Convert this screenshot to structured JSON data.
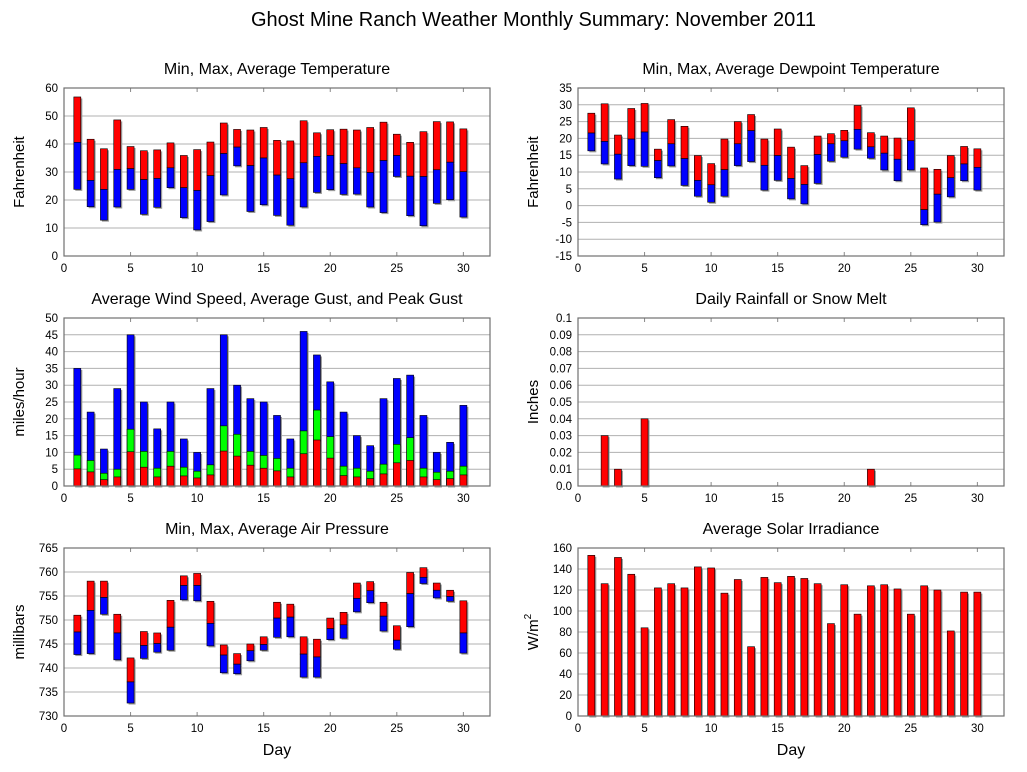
{
  "page": {
    "title": "Ghost Mine Ranch Weather Monthly Summary: November 2011"
  },
  "colors": {
    "red": "#ff0000",
    "blue": "#0000ff",
    "green": "#00ff00",
    "grid": "#b0b0b0",
    "frame": "#707070"
  },
  "chart_data": [
    {
      "id": "temperature",
      "type": "bar",
      "subtype": "floating-range",
      "title": "Min, Max, Average Temperature",
      "xlabel": "",
      "ylabel": "Fahrenheit",
      "xlim": [
        0,
        32
      ],
      "xticks": [
        0,
        5,
        10,
        15,
        20,
        25,
        30
      ],
      "ylim": [
        0,
        60
      ],
      "yticks": [
        0,
        10,
        20,
        30,
        40,
        50,
        60
      ],
      "grid": true,
      "x": [
        1,
        2,
        3,
        4,
        5,
        6,
        7,
        8,
        9,
        10,
        11,
        12,
        13,
        14,
        15,
        16,
        17,
        18,
        19,
        20,
        21,
        22,
        23,
        24,
        25,
        26,
        27,
        28,
        29,
        30
      ],
      "series": [
        {
          "name": "Max",
          "color": "red",
          "values": [
            56.8,
            41.7,
            38.3,
            48.6,
            39.1,
            37.6,
            37.9,
            40.4,
            35.9,
            38.0,
            40.7,
            47.5,
            45.2,
            45.0,
            45.9,
            41.3,
            41.1,
            48.3,
            44.0,
            45.1,
            45.3,
            45.0,
            45.9,
            47.8,
            43.5,
            40.6,
            44.4,
            48.0,
            47.9,
            45.4
          ]
        },
        {
          "name": "Average",
          "color": "split",
          "values": [
            40.6,
            27.0,
            23.8,
            30.9,
            31.2,
            27.3,
            27.7,
            31.5,
            24.4,
            23.4,
            28.7,
            36.6,
            38.9,
            32.3,
            35.0,
            28.9,
            27.6,
            33.3,
            35.6,
            35.9,
            33.0,
            31.5,
            29.8,
            34.1,
            35.9,
            28.5,
            28.4,
            30.8,
            33.5,
            30.1
          ]
        },
        {
          "name": "Min",
          "color": "blue",
          "values": [
            23.8,
            17.6,
            12.8,
            17.5,
            23.8,
            14.9,
            17.4,
            24.4,
            13.7,
            9.3,
            12.3,
            21.8,
            32.2,
            15.9,
            18.3,
            14.5,
            11.0,
            17.5,
            22.7,
            23.7,
            22.0,
            22.1,
            17.5,
            15.5,
            28.4,
            14.4,
            10.8,
            18.8,
            20.1,
            13.9
          ]
        }
      ]
    },
    {
      "id": "dewpoint",
      "type": "bar",
      "subtype": "floating-range",
      "title": "Min, Max, Average Dewpoint Temperature",
      "xlabel": "",
      "ylabel": "Fahrenheit",
      "xlim": [
        0,
        32
      ],
      "xticks": [
        0,
        5,
        10,
        15,
        20,
        25,
        30
      ],
      "ylim": [
        -15,
        35
      ],
      "yticks": [
        -15,
        -10,
        -5,
        0,
        5,
        10,
        15,
        20,
        25,
        30,
        35
      ],
      "grid": true,
      "x": [
        1,
        2,
        3,
        4,
        5,
        6,
        7,
        8,
        9,
        10,
        11,
        12,
        13,
        14,
        15,
        16,
        17,
        18,
        19,
        20,
        21,
        22,
        23,
        24,
        25,
        26,
        27,
        28,
        29,
        30
      ],
      "series": [
        {
          "name": "Max",
          "color": "red",
          "values": [
            27.5,
            30.3,
            21.0,
            28.9,
            30.4,
            16.8,
            25.6,
            23.6,
            14.9,
            12.5,
            19.8,
            25.0,
            27.1,
            19.8,
            22.8,
            17.4,
            11.9,
            20.7,
            21.4,
            22.4,
            29.8,
            21.7,
            20.7,
            20.1,
            29.1,
            11.2,
            10.8,
            14.9,
            17.6,
            16.9
          ]
        },
        {
          "name": "Average",
          "color": "split",
          "values": [
            21.6,
            19.1,
            15.3,
            19.8,
            21.9,
            13.4,
            18.4,
            14.0,
            7.5,
            6.2,
            10.7,
            18.4,
            22.3,
            12.0,
            14.9,
            8.1,
            6.3,
            15.2,
            18.4,
            19.3,
            22.7,
            17.5,
            15.6,
            13.8,
            19.3,
            -1.2,
            3.4,
            8.3,
            12.4,
            11.4
          ]
        },
        {
          "name": "Min",
          "color": "blue",
          "values": [
            16.3,
            12.4,
            7.9,
            11.9,
            11.7,
            8.3,
            11.8,
            6.0,
            2.8,
            1.0,
            2.8,
            11.9,
            13.1,
            4.6,
            7.5,
            2.0,
            0.5,
            6.6,
            13.2,
            14.4,
            16.8,
            14.1,
            10.6,
            7.4,
            10.6,
            -5.7,
            -4.9,
            2.6,
            7.4,
            4.6
          ]
        }
      ]
    },
    {
      "id": "wind",
      "type": "bar",
      "subtype": "stacked-overlay",
      "title": "Average Wind Speed, Average Gust, and Peak Gust",
      "xlabel": "",
      "ylabel": "miles/hour",
      "xlim": [
        0,
        32
      ],
      "xticks": [
        0,
        5,
        10,
        15,
        20,
        25,
        30
      ],
      "ylim": [
        0,
        50
      ],
      "yticks": [
        0,
        5,
        10,
        15,
        20,
        25,
        30,
        35,
        40,
        45,
        50
      ],
      "grid": true,
      "x": [
        1,
        2,
        3,
        4,
        5,
        6,
        7,
        8,
        9,
        10,
        11,
        12,
        13,
        14,
        15,
        16,
        17,
        18,
        19,
        20,
        21,
        22,
        23,
        24,
        25,
        26,
        27,
        28,
        29,
        30
      ],
      "series": [
        {
          "name": "Peak Gust",
          "color": "blue",
          "values": [
            35,
            22,
            11,
            29,
            45,
            25,
            17,
            25,
            14,
            10,
            29,
            45,
            30,
            26,
            25,
            21,
            14,
            46,
            39,
            31,
            22,
            15,
            12,
            26,
            32,
            33,
            21,
            10,
            13,
            24
          ]
        },
        {
          "name": "Average Gust",
          "color": "green",
          "values": [
            9.2,
            7.6,
            3.8,
            5.0,
            16.9,
            10.3,
            5.3,
            10.3,
            5.6,
            4.4,
            6.3,
            17.9,
            15.4,
            10.3,
            9.1,
            8.2,
            5.3,
            16.4,
            22.6,
            14.7,
            5.9,
            5.3,
            4.4,
            6.5,
            12.4,
            14.4,
            5.3,
            4.1,
            4.4,
            5.9
          ]
        },
        {
          "name": "Average Wind Speed",
          "color": "red",
          "values": [
            5.1,
            4.2,
            1.9,
            2.7,
            10.2,
            5.6,
            2.7,
            5.9,
            3.0,
            2.4,
            3.3,
            10.4,
            8.9,
            6.2,
            5.3,
            4.5,
            2.7,
            9.6,
            13.7,
            8.3,
            3.1,
            2.7,
            2.2,
            3.6,
            6.9,
            7.6,
            2.7,
            1.9,
            2.2,
            3.3
          ]
        }
      ]
    },
    {
      "id": "rainfall",
      "type": "bar",
      "title": "Daily Rainfall or Snow Melt",
      "xlabel": "",
      "ylabel": "Inches",
      "xlim": [
        0,
        32
      ],
      "xticks": [
        0,
        5,
        10,
        15,
        20,
        25,
        30
      ],
      "ylim": [
        0,
        0.1
      ],
      "yticks": [
        "0.0",
        "0.01",
        "0.02",
        "0.03",
        "0.04",
        "0.05",
        "0.06",
        "0.07",
        "0.08",
        "0.09",
        "0.1"
      ],
      "grid": true,
      "x": [
        1,
        2,
        3,
        4,
        5,
        6,
        7,
        8,
        9,
        10,
        11,
        12,
        13,
        14,
        15,
        16,
        17,
        18,
        19,
        20,
        21,
        22,
        23,
        24,
        25,
        26,
        27,
        28,
        29,
        30
      ],
      "series": [
        {
          "name": "Rainfall",
          "color": "red",
          "values": [
            0,
            0.03,
            0.01,
            0,
            0.04,
            0,
            0,
            0,
            0,
            0,
            0,
            0,
            0,
            0,
            0,
            0,
            0,
            0,
            0,
            0,
            0,
            0.01,
            0,
            0,
            0,
            0,
            0,
            0,
            0,
            0
          ]
        }
      ]
    },
    {
      "id": "pressure",
      "type": "bar",
      "subtype": "floating-range",
      "title": "Min, Max, Average Air Pressure",
      "xlabel": "Day",
      "ylabel": "millibars",
      "xlim": [
        0,
        32
      ],
      "xticks": [
        0,
        5,
        10,
        15,
        20,
        25,
        30
      ],
      "ylim": [
        730,
        765
      ],
      "yticks": [
        730,
        735,
        740,
        745,
        750,
        755,
        760,
        765
      ],
      "grid": true,
      "x": [
        1,
        2,
        3,
        4,
        5,
        6,
        7,
        8,
        9,
        10,
        11,
        12,
        13,
        14,
        15,
        16,
        17,
        18,
        19,
        20,
        21,
        22,
        23,
        24,
        25,
        26,
        27,
        28,
        29,
        30
      ],
      "series": [
        {
          "name": "Max",
          "color": "red",
          "values": [
            751.0,
            758.1,
            758.1,
            751.2,
            742.1,
            747.6,
            747.3,
            754.1,
            759.2,
            759.7,
            753.9,
            744.8,
            743.0,
            745.0,
            746.5,
            753.7,
            753.3,
            746.5,
            746.0,
            750.4,
            751.6,
            757.7,
            758.0,
            753.7,
            748.8,
            759.9,
            760.9,
            757.7,
            756.2,
            754.0
          ]
        },
        {
          "name": "Average",
          "color": "split",
          "values": [
            747.5,
            752.0,
            754.7,
            747.3,
            737.1,
            744.7,
            745.1,
            748.5,
            757.2,
            757.2,
            749.3,
            742.7,
            740.8,
            743.6,
            744.9,
            750.4,
            750.6,
            742.9,
            742.3,
            748.2,
            749.0,
            754.5,
            756.1,
            750.8,
            745.8,
            755.5,
            758.9,
            756.2,
            754.9,
            747.3
          ]
        },
        {
          "name": "Min",
          "color": "blue",
          "values": [
            742.8,
            743.0,
            751.2,
            741.7,
            732.7,
            742.0,
            743.3,
            743.7,
            754.2,
            754.0,
            744.6,
            739.0,
            738.8,
            741.5,
            743.7,
            746.4,
            746.5,
            738.1,
            738.1,
            745.9,
            746.2,
            751.7,
            753.6,
            747.7,
            743.9,
            748.6,
            757.6,
            754.6,
            753.9,
            743.1
          ]
        }
      ]
    },
    {
      "id": "solar",
      "type": "bar",
      "title": "Average Solar Irradiance",
      "xlabel": "Day",
      "ylabel": "W/m",
      "ylabel_sup": "2",
      "xlim": [
        0,
        32
      ],
      "xticks": [
        0,
        5,
        10,
        15,
        20,
        25,
        30
      ],
      "ylim": [
        0,
        160
      ],
      "yticks": [
        0,
        20,
        40,
        60,
        80,
        100,
        120,
        140,
        160
      ],
      "grid": true,
      "x": [
        1,
        2,
        3,
        4,
        5,
        6,
        7,
        8,
        9,
        10,
        11,
        12,
        13,
        14,
        15,
        16,
        17,
        18,
        19,
        20,
        21,
        22,
        23,
        24,
        25,
        26,
        27,
        28,
        29,
        30
      ],
      "series": [
        {
          "name": "Average Solar Irradiance",
          "color": "red",
          "values": [
            153,
            126,
            151,
            135,
            84,
            122,
            126,
            122,
            142,
            141,
            117,
            130,
            66,
            132,
            127,
            133,
            131,
            126,
            88,
            125,
            97,
            124,
            125,
            121,
            97,
            124,
            120,
            81,
            118,
            118
          ]
        }
      ]
    }
  ]
}
